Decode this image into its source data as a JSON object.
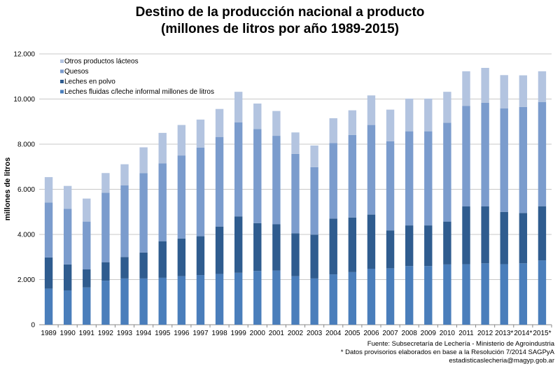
{
  "chart_data": {
    "type": "bar",
    "stacked": true,
    "title_lines": [
      "Destino de la producción nacional a producto",
      "(millones de litros por año 1989-2015)"
    ],
    "ylabel": "millones de litros",
    "xlabel": "",
    "ylim": [
      0,
      12000
    ],
    "yticks": [
      0,
      2000,
      4000,
      6000,
      8000,
      10000,
      12000
    ],
    "ytick_labels": [
      "0",
      "2.000",
      "4.000",
      "6.000",
      "8.000",
      "10.000",
      "12.000"
    ],
    "grid": true,
    "legend_position": "top-left",
    "categories": [
      "1989",
      "1990",
      "1991",
      "1992",
      "1993",
      "1994",
      "1995",
      "1996",
      "1997",
      "1998",
      "1999",
      "2000",
      "2001",
      "2002",
      "2003",
      "2004",
      "2005",
      "2006",
      "2007",
      "2008",
      "2009",
      "2010",
      "2011",
      "2012",
      "2013*",
      "2014*",
      "2015*"
    ],
    "series": [
      {
        "name": "Leches fluidas c/leche informal millones de litros",
        "color": "#4a7ebb",
        "values": [
          1600,
          1520,
          1650,
          1950,
          2050,
          2050,
          2080,
          2150,
          2200,
          2250,
          2300,
          2380,
          2400,
          2150,
          2050,
          2230,
          2330,
          2480,
          2500,
          2600,
          2600,
          2670,
          2680,
          2720,
          2680,
          2720,
          2850
        ]
      },
      {
        "name": "Leches en polvo",
        "color": "#2f5c8f",
        "values": [
          1380,
          1150,
          800,
          820,
          950,
          1150,
          1620,
          1670,
          1720,
          2100,
          2500,
          2120,
          2050,
          1900,
          1940,
          2470,
          2420,
          2400,
          1680,
          1800,
          1800,
          1900,
          2560,
          2520,
          2320,
          2230,
          2400
        ]
      },
      {
        "name": "Quesos",
        "color": "#7b9ccd",
        "values": [
          2430,
          2470,
          2120,
          3080,
          3180,
          3520,
          3450,
          3680,
          3930,
          3970,
          4170,
          4170,
          3920,
          3520,
          2990,
          3350,
          3660,
          3970,
          3950,
          4170,
          4170,
          4380,
          4450,
          4590,
          4590,
          4700,
          4620
        ]
      },
      {
        "name": "Otros productos lácteos",
        "color": "#b3c4e0",
        "values": [
          1130,
          1010,
          1020,
          870,
          930,
          1140,
          1350,
          1350,
          1240,
          1240,
          1350,
          1130,
          1100,
          950,
          960,
          1100,
          1090,
          1310,
          1400,
          1450,
          1450,
          1370,
          1540,
          1550,
          1470,
          1400,
          1360
        ]
      }
    ]
  },
  "footnotes": [
    "Fuente: Subsecretaría de Lechería - Ministerio de Agroindustria",
    "* Datos provisorios elaborados en base a la Resolución 7/2014 SAGPyA",
    "estadisticaslecheria@magyp.gob.ar"
  ]
}
